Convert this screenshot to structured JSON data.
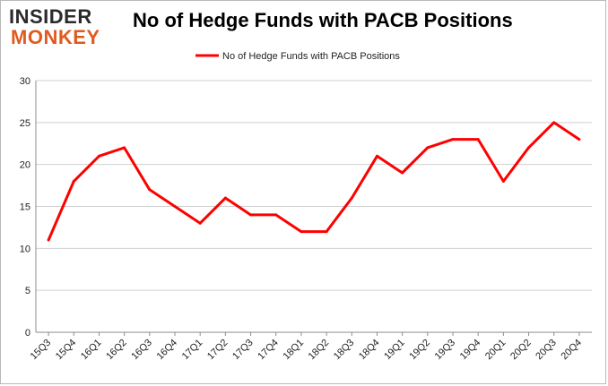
{
  "logo": {
    "line1": "INSIDER",
    "line2": "MONKEY"
  },
  "chart_data": {
    "type": "line",
    "title": "No of Hedge Funds with PACB Positions",
    "categories": [
      "15Q3",
      "15Q4",
      "16Q1",
      "16Q2",
      "16Q3",
      "16Q4",
      "17Q1",
      "17Q2",
      "17Q3",
      "17Q4",
      "18Q1",
      "18Q2",
      "18Q3",
      "18Q4",
      "19Q1",
      "19Q2",
      "19Q3",
      "19Q4",
      "20Q1",
      "20Q2",
      "20Q3",
      "20Q4"
    ],
    "series": [
      {
        "name": "No of Hedge Funds with PACB Positions",
        "values": [
          11,
          18,
          21,
          22,
          17,
          15,
          13,
          16,
          14,
          14,
          12,
          12,
          16,
          21,
          19,
          22,
          23,
          23,
          18,
          22,
          25,
          23
        ]
      }
    ],
    "ylim": [
      0,
      30
    ],
    "yticks": [
      0,
      5,
      10,
      15,
      20,
      25,
      30
    ],
    "grid": true,
    "legend": "top-center",
    "line_color": "#ff0000",
    "xlabel": "",
    "ylabel": ""
  }
}
